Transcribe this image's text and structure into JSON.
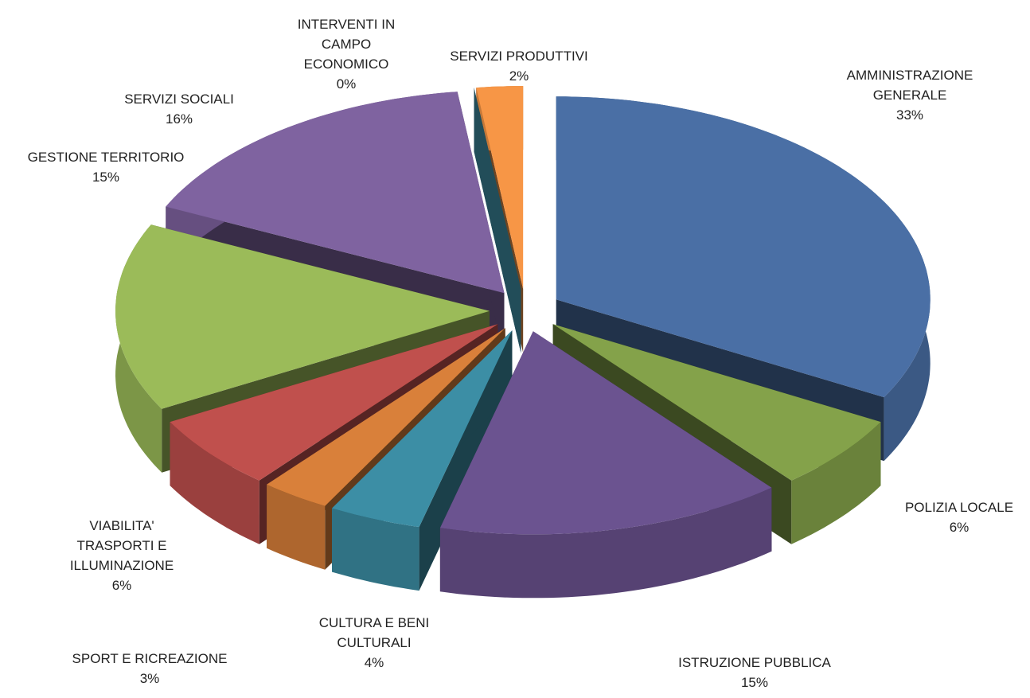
{
  "chart_data": {
    "type": "pie3d",
    "categories": [
      "AMMINISTRAZIONE GENERALE",
      "POLIZIA LOCALE",
      "ISTRUZIONE PUBBLICA",
      "CULTURA E BENI CULTURALI",
      "SPORT E RICREAZIONE",
      "VIABILITA' TRASPORTI E ILLUMINAZIONE",
      "GESTIONE TERRITORIO",
      "SERVIZI SOCIALI",
      "INTERVENTI IN CAMPO ECONOMICO",
      "SERVIZI PRODUTTIVI"
    ],
    "values": [
      33,
      6,
      15,
      4,
      3,
      6,
      15,
      16,
      0,
      2
    ],
    "value_labels": [
      "33%",
      "6%",
      "15%",
      "4%",
      "3%",
      "6%",
      "15%",
      "16%",
      "0%",
      "2%"
    ],
    "colors": [
      "#4a6fa5",
      "#84a24a",
      "#6b5390",
      "#3c8ea5",
      "#d9803a",
      "#c0504d",
      "#9bbb59",
      "#7f63a0",
      "#4bacc6",
      "#f79646"
    ]
  }
}
